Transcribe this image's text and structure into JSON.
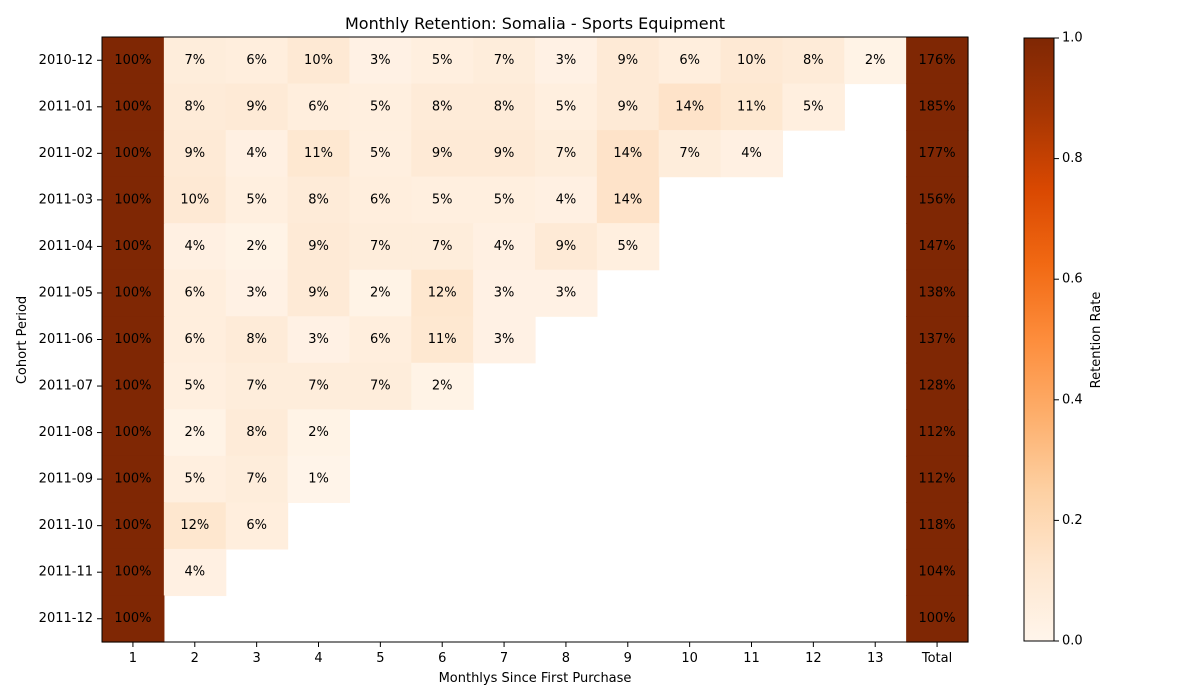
{
  "chart_data": {
    "type": "heatmap",
    "title": "Monthly Retention: Somalia - Sports Equipment",
    "xlabel": "Monthlys Since First Purchase",
    "ylabel": "Cohort Period",
    "x_categories": [
      "1",
      "2",
      "3",
      "4",
      "5",
      "6",
      "7",
      "8",
      "9",
      "10",
      "11",
      "12",
      "13",
      "Total"
    ],
    "y_categories": [
      "2010-12",
      "2011-01",
      "2011-02",
      "2011-03",
      "2011-04",
      "2011-05",
      "2011-06",
      "2011-07",
      "2011-08",
      "2011-09",
      "2011-10",
      "2011-11",
      "2011-12"
    ],
    "values": [
      [
        100,
        7,
        6,
        10,
        3,
        5,
        7,
        3,
        9,
        6,
        10,
        8,
        2
      ],
      [
        100,
        8,
        9,
        6,
        5,
        8,
        8,
        5,
        9,
        14,
        11,
        5
      ],
      [
        100,
        9,
        4,
        11,
        5,
        9,
        9,
        7,
        14,
        7,
        4
      ],
      [
        100,
        10,
        5,
        8,
        6,
        5,
        5,
        4,
        14
      ],
      [
        100,
        4,
        2,
        9,
        7,
        7,
        4,
        9,
        5
      ],
      [
        100,
        6,
        3,
        9,
        2,
        12,
        3,
        3
      ],
      [
        100,
        6,
        8,
        3,
        6,
        11,
        3
      ],
      [
        100,
        5,
        7,
        7,
        7,
        2
      ],
      [
        100,
        2,
        8,
        2
      ],
      [
        100,
        5,
        7,
        1
      ],
      [
        100,
        12,
        6
      ],
      [
        100,
        4
      ],
      [
        100
      ]
    ],
    "totals": [
      176,
      185,
      177,
      156,
      147,
      138,
      137,
      128,
      112,
      112,
      118,
      104,
      100
    ],
    "value_suffix": "%",
    "colorbar": {
      "label": "Retention Rate",
      "range": [
        0,
        1
      ],
      "ticks": [
        "0.0",
        "0.2",
        "0.4",
        "0.6",
        "0.8",
        "1.0"
      ],
      "colormap": "Oranges",
      "color_low": "#fff5eb",
      "color_high": "#7f2704"
    }
  }
}
